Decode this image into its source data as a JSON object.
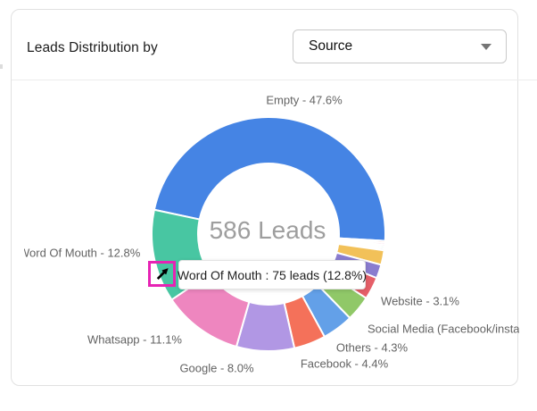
{
  "card": {
    "title": "Leads Distribution by",
    "dropdown": {
      "value": "Source"
    }
  },
  "chart_data": {
    "type": "pie",
    "center_label": "586 Leads",
    "total_leads": 586,
    "start_angle": 168,
    "legend_position": "none",
    "segments": [
      {
        "name": "Empty",
        "percent": 47.6,
        "color": "#4584e4",
        "label": "Empty - 47.6%"
      },
      {
        "name": "",
        "percent": 0.26,
        "color": "#f2917f",
        "label": ""
      },
      {
        "name": "",
        "percent": 0.26,
        "color": "#f193c4",
        "label": ""
      },
      {
        "name": "",
        "percent": 0.26,
        "color": "#d9a6da",
        "label": ""
      },
      {
        "name": "",
        "percent": 0.26,
        "color": "#54c6a4",
        "label": ""
      },
      {
        "name": "",
        "percent": 0.26,
        "color": "#5b8fdf",
        "label": ""
      },
      {
        "name": "",
        "percent": 2.0,
        "color": "#f2c159",
        "label": ""
      },
      {
        "name": "",
        "percent": 1.9,
        "color": "#8a7ccf",
        "label": ""
      },
      {
        "name": "Website",
        "percent": 3.1,
        "color": "#e55f68",
        "label": "Website - 3.1%"
      },
      {
        "name": "Social Media",
        "percent": 3.5,
        "color": "#90c868",
        "label": "Social Media (Facebook/insta"
      },
      {
        "name": "Others",
        "percent": 4.3,
        "color": "#63a0e8",
        "label": "Others - 4.3%"
      },
      {
        "name": "Facebook",
        "percent": 4.4,
        "color": "#f4715a",
        "label": "Facebook - 4.4%"
      },
      {
        "name": "Google",
        "percent": 8.0,
        "color": "#b197e4",
        "label": "Google - 8.0%"
      },
      {
        "name": "Whatsapp",
        "percent": 11.1,
        "color": "#ee86bf",
        "label": "Whatsapp - 11.1%"
      },
      {
        "name": "Word Of Mouth",
        "percent": 12.8,
        "color": "#48c6a2",
        "label": "Word Of Mouth - 12.8%",
        "leads": 75
      }
    ]
  },
  "tooltip": {
    "text": "Word Of Mouth : 75 leads (12.8%)"
  },
  "colors": {
    "cursor_highlight": "#e623b4",
    "center_label_gray": "#9e9e9e",
    "slice_label_gray": "#636363"
  }
}
